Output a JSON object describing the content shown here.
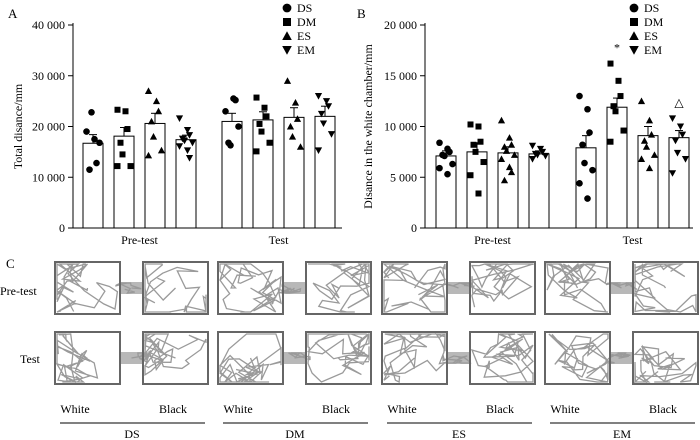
{
  "chart_data": [
    {
      "panel": "A",
      "type": "bar",
      "ylabel": "Total disance/mm",
      "ylim": [
        0,
        40000
      ],
      "yticks": [
        0,
        10000,
        20000,
        30000,
        40000
      ],
      "ytick_labels": [
        "0",
        "10 000",
        "20 000",
        "30 000",
        "40 000"
      ],
      "groups": [
        "Pre-test",
        "Test"
      ],
      "legend": [
        "DS",
        "DM",
        "ES",
        "EM"
      ],
      "series": [
        {
          "name": "DS",
          "values": [
            16700,
            21000
          ],
          "sem": [
            1700,
            1600
          ],
          "points": [
            [
              19000,
              17500,
              12800,
              11500,
              22800,
              16800
            ],
            [
              23000,
              25500,
              25200,
              16800,
              16300,
              20000
            ]
          ]
        },
        {
          "name": "DM",
          "values": [
            18100,
            21300
          ],
          "sem": [
            1700,
            1600
          ],
          "points": [
            [
              23300,
              23000,
              19500,
              16800,
              14500,
              12200,
              12200
            ],
            [
              25700,
              23700,
              22000,
              20500,
              19000,
              16800,
              15100
            ]
          ]
        },
        {
          "name": "ES",
          "values": [
            20600,
            21800
          ],
          "sem": [
            2000,
            1900
          ],
          "points": [
            [
              27000,
              25000,
              23000,
              21000,
              18000,
              15300,
              14300
            ],
            [
              29000,
              24700,
              21500,
              20000,
              18000,
              16000
            ]
          ]
        },
        {
          "name": "EM",
          "values": [
            17400,
            22000
          ],
          "sem": [
            900,
            2000
          ],
          "points": [
            [
              21600,
              19300,
              18300,
              17600,
              17200,
              16800,
              16100,
              15300,
              13800
            ],
            [
              26000,
              25000,
              24000,
              22500,
              20600,
              18500,
              15300
            ]
          ]
        }
      ]
    },
    {
      "panel": "B",
      "type": "bar",
      "ylabel": "Disance in the white chamber/mm",
      "ylim": [
        0,
        20000
      ],
      "yticks": [
        0,
        5000,
        10000,
        15000,
        20000
      ],
      "ytick_labels": [
        "0",
        "5 000",
        "10 000",
        "15 000",
        "20 000"
      ],
      "groups": [
        "Pre-test",
        "Test"
      ],
      "legend": [
        "DS",
        "DM",
        "ES",
        "EM"
      ],
      "annotations": [
        {
          "group": "Test",
          "series": "DM",
          "text": "*"
        },
        {
          "group": "Test",
          "series": "EM",
          "text": "△"
        }
      ],
      "series": [
        {
          "name": "DS",
          "values": [
            7100,
            7900
          ],
          "sem": [
            500,
            1200
          ],
          "points": [
            [
              8400,
              7800,
              7500,
              7200,
              7100,
              6300,
              5900,
              5300
            ],
            [
              13000,
              11700,
              9400,
              8200,
              6400,
              5700,
              4400,
              2900
            ]
          ]
        },
        {
          "name": "DM",
          "values": [
            7500,
            11900
          ],
          "sem": [
            900,
            900
          ],
          "points": [
            [
              10200,
              10000,
              8500,
              8200,
              7500,
              6500,
              5200,
              3400
            ],
            [
              16200,
              14500,
              13000,
              12000,
              11500,
              9600,
              8500
            ]
          ]
        },
        {
          "name": "ES",
          "values": [
            7400,
            9100
          ],
          "sem": [
            600,
            900
          ],
          "points": [
            [
              10600,
              8900,
              8200,
              8000,
              7600,
              7200,
              6800,
              6000,
              5500,
              4700
            ],
            [
              12500,
              10600,
              9200,
              8600,
              8000,
              7200,
              6800,
              5900
            ]
          ]
        },
        {
          "name": "EM",
          "values": [
            7300,
            8900
          ],
          "sem": [
            300,
            700
          ],
          "points": [
            [
              8100,
              7800,
              7500,
              7300,
              7200,
              7100,
              6800
            ],
            [
              10800,
              10000,
              9200,
              8600,
              7400,
              6800,
              5400
            ]
          ]
        }
      ]
    }
  ],
  "panel_c": {
    "label": "C",
    "row_labels": [
      "Pre-test",
      "Test"
    ],
    "side_labels": [
      "White",
      "Black"
    ],
    "groups": [
      "DS",
      "DM",
      "ES",
      "EM"
    ]
  }
}
